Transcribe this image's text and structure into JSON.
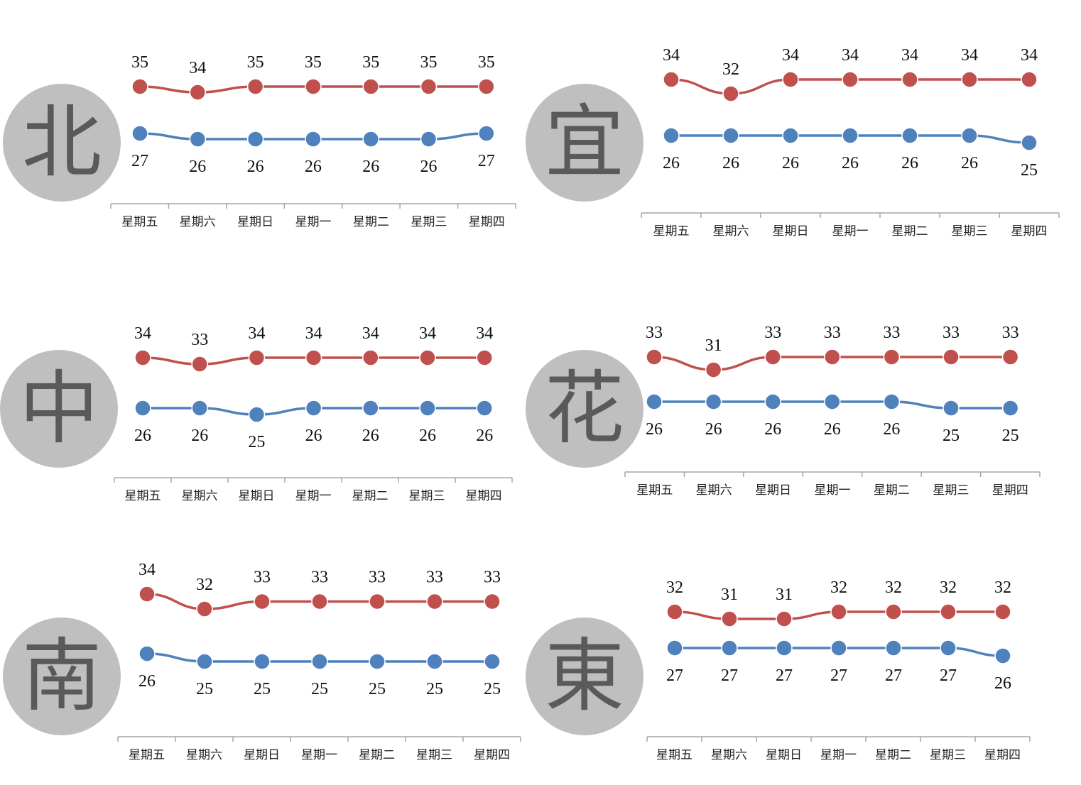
{
  "colors": {
    "high": "#c0504d",
    "low": "#4f81bd",
    "axis": "#a6a6a6",
    "circle": "#bfbfbf"
  },
  "chart_data": [
    {
      "type": "line",
      "region": "北",
      "categories": [
        "星期五",
        "星期六",
        "星期日",
        "星期一",
        "星期二",
        "星期三",
        "星期四"
      ],
      "series": [
        {
          "values": [
            35,
            34,
            35,
            35,
            35,
            35,
            35
          ]
        },
        {
          "values": [
            27,
            26,
            26,
            26,
            26,
            26,
            27
          ]
        }
      ],
      "grid": false
    },
    {
      "type": "line",
      "region": "宜",
      "categories": [
        "星期五",
        "星期六",
        "星期日",
        "星期一",
        "星期二",
        "星期三",
        "星期四"
      ],
      "series": [
        {
          "values": [
            34,
            32,
            34,
            34,
            34,
            34,
            34
          ]
        },
        {
          "values": [
            26,
            26,
            26,
            26,
            26,
            26,
            25
          ]
        }
      ],
      "grid": false
    },
    {
      "type": "line",
      "region": "中",
      "categories": [
        "星期五",
        "星期六",
        "星期日",
        "星期一",
        "星期二",
        "星期三",
        "星期四"
      ],
      "series": [
        {
          "values": [
            34,
            33,
            34,
            34,
            34,
            34,
            34
          ]
        },
        {
          "values": [
            26,
            26,
            25,
            26,
            26,
            26,
            26
          ]
        }
      ],
      "grid": false
    },
    {
      "type": "line",
      "region": "花",
      "categories": [
        "星期五",
        "星期六",
        "星期日",
        "星期一",
        "星期二",
        "星期三",
        "星期四"
      ],
      "series": [
        {
          "values": [
            33,
            31,
            33,
            33,
            33,
            33,
            33
          ]
        },
        {
          "values": [
            26,
            26,
            26,
            26,
            26,
            25,
            25
          ]
        }
      ],
      "grid": false
    },
    {
      "type": "line",
      "region": "南",
      "categories": [
        "星期五",
        "星期六",
        "星期日",
        "星期一",
        "星期二",
        "星期三",
        "星期四"
      ],
      "series": [
        {
          "values": [
            34,
            32,
            33,
            33,
            33,
            33,
            33
          ]
        },
        {
          "values": [
            26,
            25,
            25,
            25,
            25,
            25,
            25
          ]
        }
      ],
      "grid": false
    },
    {
      "type": "line",
      "region": "東",
      "categories": [
        "星期五",
        "星期六",
        "星期日",
        "星期一",
        "星期二",
        "星期三",
        "星期四"
      ],
      "series": [
        {
          "values": [
            32,
            31,
            31,
            32,
            32,
            32,
            32
          ]
        },
        {
          "values": [
            27,
            27,
            27,
            27,
            27,
            27,
            26
          ]
        }
      ],
      "grid": false
    }
  ]
}
